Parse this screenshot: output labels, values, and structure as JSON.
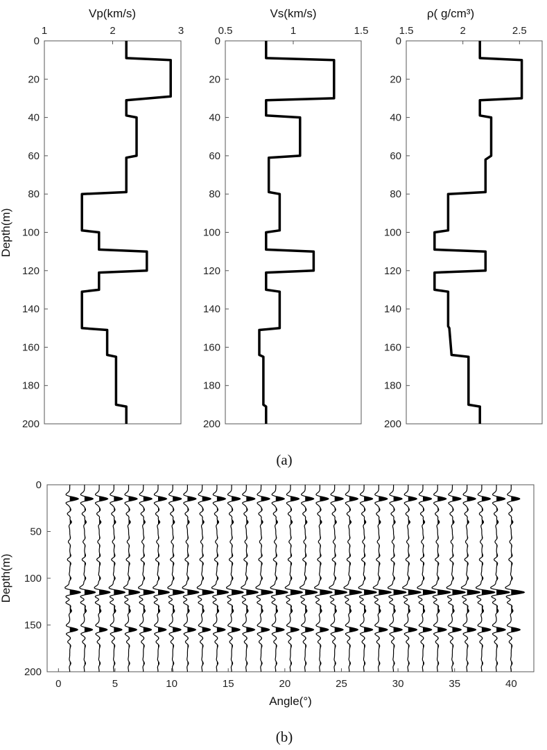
{
  "figure_top": {
    "caption": "(a)",
    "ylabel": "Depth(m)",
    "panels": [
      {
        "name": "vp",
        "xlabel": "Vp(km/s)",
        "xlim": [
          1,
          3
        ],
        "xticks": [
          1,
          2,
          3
        ],
        "xtick_labels": [
          "1",
          "2",
          "3"
        ],
        "ylim": [
          0,
          200
        ],
        "yticks": [
          0,
          20,
          40,
          60,
          80,
          100,
          120,
          140,
          160,
          180,
          200
        ],
        "profile": [
          [
            2.2,
            0
          ],
          [
            2.2,
            9
          ],
          [
            2.85,
            10
          ],
          [
            2.85,
            29
          ],
          [
            2.2,
            31
          ],
          [
            2.2,
            39
          ],
          [
            2.35,
            40
          ],
          [
            2.35,
            60
          ],
          [
            2.2,
            61
          ],
          [
            2.2,
            79
          ],
          [
            1.55,
            80
          ],
          [
            1.55,
            99
          ],
          [
            1.8,
            100
          ],
          [
            1.8,
            109
          ],
          [
            2.5,
            110
          ],
          [
            2.5,
            120
          ],
          [
            1.8,
            121
          ],
          [
            1.8,
            130
          ],
          [
            1.55,
            131
          ],
          [
            1.55,
            150
          ],
          [
            1.92,
            151
          ],
          [
            1.92,
            164
          ],
          [
            2.05,
            165
          ],
          [
            2.05,
            190
          ],
          [
            2.2,
            191
          ],
          [
            2.2,
            200
          ]
        ]
      },
      {
        "name": "vs",
        "xlabel": "Vs(km/s)",
        "xlim": [
          0.5,
          1.5
        ],
        "xticks": [
          0.5,
          1,
          1.5
        ],
        "xtick_labels": [
          "0.5",
          "1",
          "1.5"
        ],
        "ylim": [
          0,
          200
        ],
        "yticks": [
          0,
          20,
          40,
          60,
          80,
          100,
          120,
          140,
          160,
          180,
          200
        ],
        "profile": [
          [
            0.8,
            0
          ],
          [
            0.8,
            9
          ],
          [
            1.3,
            10
          ],
          [
            1.3,
            30
          ],
          [
            0.8,
            31
          ],
          [
            0.8,
            39
          ],
          [
            1.05,
            40
          ],
          [
            1.05,
            60
          ],
          [
            0.82,
            61
          ],
          [
            0.82,
            79
          ],
          [
            0.9,
            80
          ],
          [
            0.9,
            99
          ],
          [
            0.8,
            100
          ],
          [
            0.8,
            109
          ],
          [
            1.15,
            110
          ],
          [
            1.15,
            120
          ],
          [
            0.8,
            121
          ],
          [
            0.8,
            130
          ],
          [
            0.9,
            131
          ],
          [
            0.9,
            150
          ],
          [
            0.75,
            151
          ],
          [
            0.75,
            164
          ],
          [
            0.78,
            165
          ],
          [
            0.78,
            190
          ],
          [
            0.8,
            191
          ],
          [
            0.8,
            200
          ]
        ]
      },
      {
        "name": "rho",
        "xlabel": "ρ( g/cm³)",
        "xlim": [
          1.5,
          2.7
        ],
        "xticks": [
          1.5,
          2,
          2.5
        ],
        "xtick_labels": [
          "1.5",
          "2",
          "2.5"
        ],
        "ylim": [
          0,
          200
        ],
        "yticks": [
          0,
          20,
          40,
          60,
          80,
          100,
          120,
          140,
          160,
          180,
          200
        ],
        "profile": [
          [
            2.15,
            0
          ],
          [
            2.15,
            9
          ],
          [
            2.52,
            10
          ],
          [
            2.52,
            30
          ],
          [
            2.15,
            31
          ],
          [
            2.15,
            39
          ],
          [
            2.25,
            40
          ],
          [
            2.25,
            60
          ],
          [
            2.2,
            62
          ],
          [
            2.2,
            79
          ],
          [
            1.87,
            80
          ],
          [
            1.87,
            99
          ],
          [
            1.75,
            100
          ],
          [
            1.75,
            109
          ],
          [
            2.2,
            110
          ],
          [
            2.2,
            120
          ],
          [
            1.75,
            121
          ],
          [
            1.75,
            130
          ],
          [
            1.87,
            131
          ],
          [
            1.87,
            149
          ],
          [
            1.88,
            150
          ],
          [
            1.9,
            164
          ],
          [
            2.05,
            165
          ],
          [
            2.05,
            190
          ],
          [
            2.15,
            191
          ],
          [
            2.15,
            200
          ]
        ]
      }
    ]
  },
  "figure_bottom": {
    "caption": "(b)",
    "xlabel": "Angle(°)",
    "ylabel": "Depth(m)",
    "xlim": [
      -1,
      42
    ],
    "xticks": [
      0,
      5,
      10,
      15,
      20,
      25,
      30,
      35,
      40
    ],
    "xtick_labels": [
      "0",
      "5",
      "10",
      "15",
      "20",
      "25",
      "30",
      "35",
      "40"
    ],
    "ylim": [
      0,
      200
    ],
    "yticks": [
      0,
      50,
      100,
      150,
      200
    ],
    "ytick_labels": [
      "0",
      "50",
      "100",
      "150",
      "200"
    ],
    "trace_angles_deg": [
      1,
      2.3,
      3.6,
      4.9,
      6.2,
      7.5,
      8.8,
      10.1,
      11.4,
      12.7,
      14,
      15.3,
      16.6,
      17.9,
      19.2,
      20.5,
      21.8,
      23.1,
      24.4,
      25.7,
      27,
      28.3,
      29.6,
      30.9,
      32.2,
      33.5,
      34.8,
      36.1,
      37.4,
      38.7,
      40
    ],
    "reflections_depth_m": [
      10,
      31,
      40,
      61,
      80,
      100,
      110,
      121,
      131,
      151,
      165,
      191
    ],
    "main_events_depth_m": [
      15,
      115,
      155
    ]
  },
  "chart_data": [
    {
      "type": "line",
      "xlabel": "Vp(km/s)",
      "ylabel": "Depth(m)",
      "xlim": [
        1,
        3
      ],
      "ylim": [
        200,
        0
      ],
      "x": [
        2.2,
        2.2,
        2.85,
        2.85,
        2.2,
        2.2,
        2.35,
        2.35,
        2.2,
        2.2,
        1.55,
        1.55,
        1.8,
        1.8,
        2.5,
        2.5,
        1.8,
        1.8,
        1.55,
        1.55,
        1.92,
        1.92,
        2.05,
        2.05,
        2.2,
        2.2
      ],
      "y": [
        0,
        9,
        10,
        29,
        31,
        39,
        40,
        60,
        61,
        79,
        80,
        99,
        100,
        109,
        110,
        120,
        121,
        130,
        131,
        150,
        151,
        164,
        165,
        190,
        191,
        200
      ]
    },
    {
      "type": "line",
      "xlabel": "Vs(km/s)",
      "ylabel": "Depth(m)",
      "xlim": [
        0.5,
        1.5
      ],
      "ylim": [
        200,
        0
      ],
      "x": [
        0.8,
        0.8,
        1.3,
        1.3,
        0.8,
        0.8,
        1.05,
        1.05,
        0.82,
        0.82,
        0.9,
        0.9,
        0.8,
        0.8,
        1.15,
        1.15,
        0.8,
        0.8,
        0.9,
        0.9,
        0.75,
        0.75,
        0.78,
        0.78,
        0.8,
        0.8
      ],
      "y": [
        0,
        9,
        10,
        30,
        31,
        39,
        40,
        60,
        61,
        79,
        80,
        99,
        100,
        109,
        110,
        120,
        121,
        130,
        131,
        150,
        151,
        164,
        165,
        190,
        191,
        200
      ]
    },
    {
      "type": "line",
      "xlabel": "ρ( g/cm³)",
      "ylabel": "Depth(m)",
      "xlim": [
        1.5,
        2.7
      ],
      "ylim": [
        200,
        0
      ],
      "x": [
        2.15,
        2.15,
        2.52,
        2.52,
        2.15,
        2.15,
        2.25,
        2.25,
        2.2,
        2.2,
        1.87,
        1.87,
        1.75,
        1.75,
        2.2,
        2.2,
        1.75,
        1.75,
        1.87,
        1.87,
        1.88,
        1.9,
        2.05,
        2.05,
        2.15,
        2.15
      ],
      "y": [
        0,
        9,
        10,
        30,
        31,
        39,
        40,
        60,
        62,
        79,
        80,
        99,
        100,
        109,
        110,
        120,
        121,
        130,
        131,
        149,
        150,
        164,
        165,
        190,
        191,
        200
      ]
    },
    {
      "type": "line",
      "xlabel": "Angle(°)",
      "ylabel": "Depth(m)",
      "xlim": [
        -1,
        42
      ],
      "ylim": [
        200,
        0
      ],
      "series": [
        {
          "x": [
            1,
            2.3,
            3.6,
            4.9,
            6.2,
            7.5,
            8.8,
            10.1,
            11.4,
            12.7,
            14,
            15.3,
            16.6,
            17.9,
            19.2,
            20.5,
            21.8,
            23.1,
            24.4,
            25.7,
            27,
            28.3,
            29.6,
            30.9,
            32.2,
            33.5,
            34.8,
            36.1,
            37.4,
            38.7,
            40
          ]
        }
      ]
    }
  ]
}
